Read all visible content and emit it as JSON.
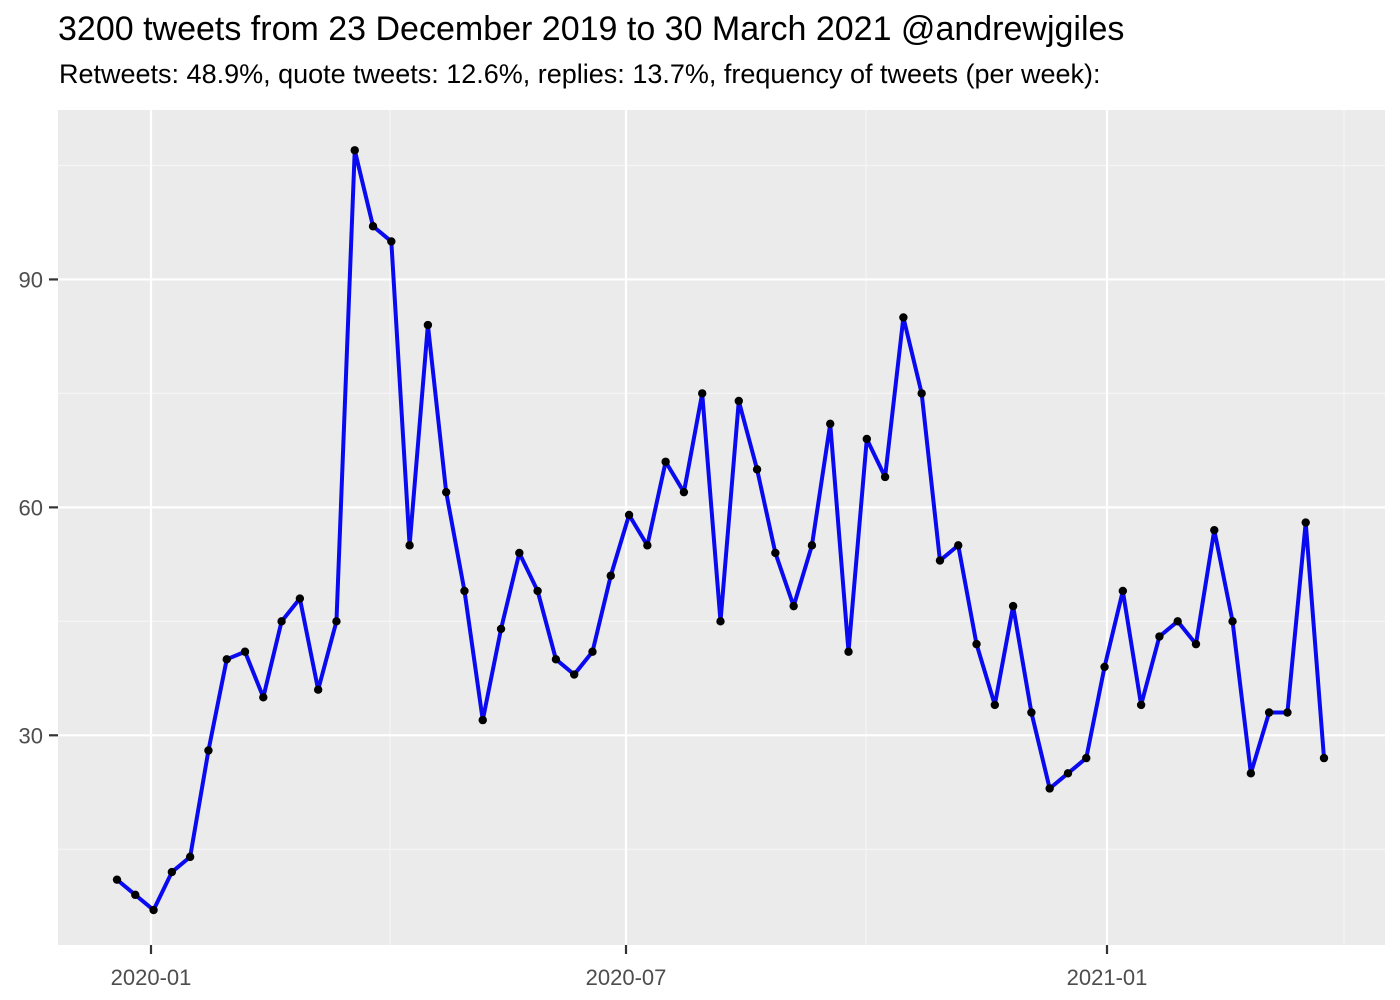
{
  "title": "3200 tweets from 23 December 2019 to 30 March 2021 @andrewjgiles",
  "subtitle": "Retweets: 48.9%, quote tweets: 12.6%, replies: 13.7%, frequency of tweets (per week):",
  "chart_data": {
    "type": "line",
    "series_name": "tweets per week",
    "x": [
      "2019-12-23",
      "2019-12-30",
      "2020-01-06",
      "2020-01-13",
      "2020-01-20",
      "2020-01-27",
      "2020-02-03",
      "2020-02-10",
      "2020-02-17",
      "2020-02-24",
      "2020-03-02",
      "2020-03-09",
      "2020-03-16",
      "2020-03-23",
      "2020-03-30",
      "2020-04-06",
      "2020-04-13",
      "2020-04-20",
      "2020-04-27",
      "2020-05-04",
      "2020-05-11",
      "2020-05-18",
      "2020-05-25",
      "2020-06-01",
      "2020-06-08",
      "2020-06-15",
      "2020-06-22",
      "2020-06-29",
      "2020-07-06",
      "2020-07-13",
      "2020-07-20",
      "2020-07-27",
      "2020-08-03",
      "2020-08-10",
      "2020-08-17",
      "2020-08-24",
      "2020-08-31",
      "2020-09-07",
      "2020-09-14",
      "2020-09-21",
      "2020-09-28",
      "2020-10-05",
      "2020-10-12",
      "2020-10-19",
      "2020-10-26",
      "2020-11-02",
      "2020-11-09",
      "2020-11-16",
      "2020-11-23",
      "2020-11-30",
      "2020-12-07",
      "2020-12-14",
      "2020-12-21",
      "2020-12-28",
      "2021-01-04",
      "2021-01-11",
      "2021-01-18",
      "2021-01-25",
      "2021-02-01",
      "2021-02-08",
      "2021-02-15",
      "2021-02-22",
      "2021-03-01",
      "2021-03-08",
      "2021-03-15",
      "2021-03-22",
      "2021-03-29"
    ],
    "values": [
      11,
      9,
      7,
      12,
      14,
      28,
      40,
      41,
      35,
      45,
      48,
      36,
      45,
      107,
      97,
      95,
      55,
      84,
      62,
      49,
      32,
      44,
      54,
      49,
      40,
      38,
      41,
      51,
      59,
      55,
      66,
      62,
      75,
      45,
      74,
      65,
      54,
      47,
      55,
      71,
      41,
      69,
      64,
      85,
      75,
      53,
      55,
      42,
      34,
      47,
      33,
      23,
      25,
      27,
      39,
      49,
      34,
      43,
      45,
      42,
      57,
      45,
      25,
      33,
      33,
      58,
      27
    ],
    "x_major_ticks": [
      "2020-01",
      "2020-07",
      "2021-01"
    ],
    "x_minor_ticks": [
      "2020-04",
      "2020-10",
      "2021-04"
    ],
    "y_major_ticks": [
      30,
      60,
      90
    ],
    "y_minor_ticks": [
      15,
      45,
      75,
      105
    ],
    "ylim": [
      2.4,
      112.3
    ],
    "grid": true,
    "legend": "none",
    "colors": {
      "line": "#0a0af0",
      "point": "#000000",
      "panel_bg": "#EBEBEB",
      "grid_major": "#FFFFFF",
      "grid_minor": "#F5F5F5",
      "tick_text": "#4D4D4D",
      "tick_mark": "#333333",
      "title_text": "#000000"
    }
  }
}
